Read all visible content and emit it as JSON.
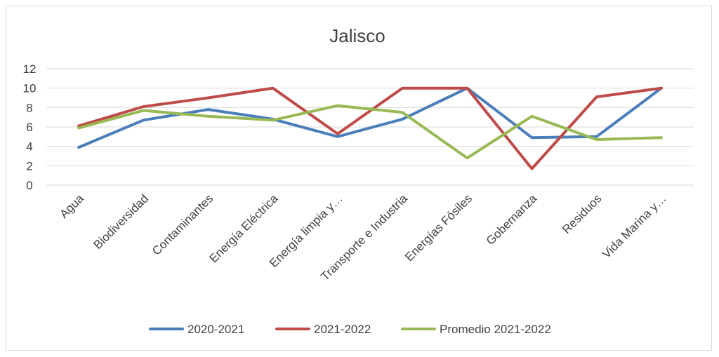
{
  "chart_data": {
    "type": "line",
    "title": "Jalisco",
    "xlabel": "",
    "ylabel": "",
    "ylim": [
      0,
      12
    ],
    "yticks": [
      0,
      2,
      4,
      6,
      8,
      10,
      12
    ],
    "grid": true,
    "legend_position": "bottom",
    "categories": [
      "Agua",
      "Biodiversidad",
      "Contaminantes",
      "Energía Eléctrica",
      "Energía limpia y…",
      "Transporte e Industria",
      "Energías Fósiles",
      "Gobernanza",
      "Residuos",
      "Vida Marina y…"
    ],
    "series": [
      {
        "name": "2020-2021",
        "color": "#4a7ebb",
        "values": [
          3.9,
          6.7,
          7.8,
          6.8,
          5.0,
          6.8,
          10.0,
          4.9,
          5.0,
          10.0
        ]
      },
      {
        "name": "2021-2022",
        "color": "#be4b48",
        "values": [
          6.1,
          8.1,
          9.0,
          10.0,
          5.3,
          10.0,
          10.0,
          1.7,
          9.1,
          10.0
        ]
      },
      {
        "name": "Promedio 2021-2022",
        "color": "#98b954",
        "values": [
          5.9,
          7.7,
          7.1,
          6.7,
          8.2,
          7.5,
          2.8,
          7.1,
          4.7,
          4.9
        ]
      }
    ]
  }
}
